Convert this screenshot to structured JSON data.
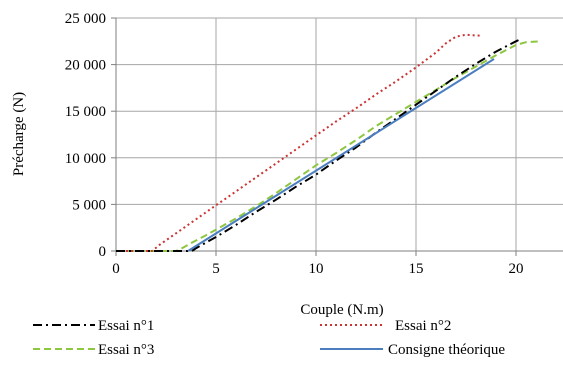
{
  "chart_data": {
    "type": "line",
    "title": "",
    "xlabel": "Couple (N.m)",
    "ylabel": "Précharge (N)",
    "xlim": [
      0,
      22.5
    ],
    "ylim": [
      0,
      25000
    ],
    "x_ticks": [
      0,
      5,
      10,
      15,
      20
    ],
    "y_ticks": [
      0,
      5000,
      10000,
      15000,
      20000,
      25000
    ],
    "x_tick_labels": [
      "0",
      "5",
      "10",
      "15",
      "20"
    ],
    "y_tick_labels": [
      "0",
      "5 000",
      "10 000",
      "15 000",
      "20 000",
      "25 000"
    ],
    "grid": true,
    "legend_position": "bottom",
    "series": [
      {
        "name": "Essai n°1",
        "color": "#000000",
        "dash": "dash-dot",
        "points": [
          [
            0,
            0
          ],
          [
            3.8,
            0
          ],
          [
            4.0,
            300
          ],
          [
            4.5,
            900
          ],
          [
            5.0,
            1500
          ],
          [
            6,
            2800
          ],
          [
            7,
            4200
          ],
          [
            8,
            5500
          ],
          [
            9,
            6900
          ],
          [
            10,
            8200
          ],
          [
            11,
            9700
          ],
          [
            12,
            11100
          ],
          [
            13,
            12700
          ],
          [
            14,
            14200
          ],
          [
            15,
            15700
          ],
          [
            16,
            17200
          ],
          [
            17,
            18700
          ],
          [
            18,
            20100
          ],
          [
            19,
            21400
          ],
          [
            20,
            22500
          ],
          [
            20.2,
            22700
          ]
        ]
      },
      {
        "name": "Essai n°2",
        "color": "#cc3333",
        "dash": "dotted",
        "points": [
          [
            0,
            0
          ],
          [
            1.8,
            0
          ],
          [
            2.2,
            700
          ],
          [
            3,
            1900
          ],
          [
            4,
            3400
          ],
          [
            5,
            4900
          ],
          [
            6,
            6400
          ],
          [
            7,
            7900
          ],
          [
            8,
            9400
          ],
          [
            9,
            10900
          ],
          [
            10,
            12400
          ],
          [
            11,
            13900
          ],
          [
            12,
            15300
          ],
          [
            13,
            16800
          ],
          [
            14,
            18200
          ],
          [
            15,
            19700
          ],
          [
            16,
            21300
          ],
          [
            16.5,
            22300
          ],
          [
            17,
            23000
          ],
          [
            17.5,
            23200
          ],
          [
            18.2,
            23100
          ]
        ]
      },
      {
        "name": "Essai n°3",
        "color": "#8dc63f",
        "dash": "dashed",
        "points": [
          [
            0,
            0
          ],
          [
            3.0,
            0
          ],
          [
            3.3,
            300
          ],
          [
            3.8,
            900
          ],
          [
            4.5,
            1700
          ],
          [
            5,
            2300
          ],
          [
            6,
            3500
          ],
          [
            7,
            4800
          ],
          [
            8,
            6200
          ],
          [
            9,
            7700
          ],
          [
            10,
            9200
          ],
          [
            11,
            10500
          ],
          [
            12,
            11900
          ],
          [
            13,
            13400
          ],
          [
            14,
            14700
          ],
          [
            15,
            16000
          ],
          [
            16,
            17300
          ],
          [
            17,
            18600
          ],
          [
            18,
            19800
          ],
          [
            19,
            21000
          ],
          [
            20,
            22100
          ],
          [
            20.5,
            22400
          ],
          [
            21.2,
            22500
          ]
        ]
      },
      {
        "name": "Consigne théorique",
        "color": "#4a7ebf",
        "dash": "solid",
        "points": [
          [
            3.6,
            0
          ],
          [
            18.9,
            20600
          ]
        ]
      }
    ]
  }
}
